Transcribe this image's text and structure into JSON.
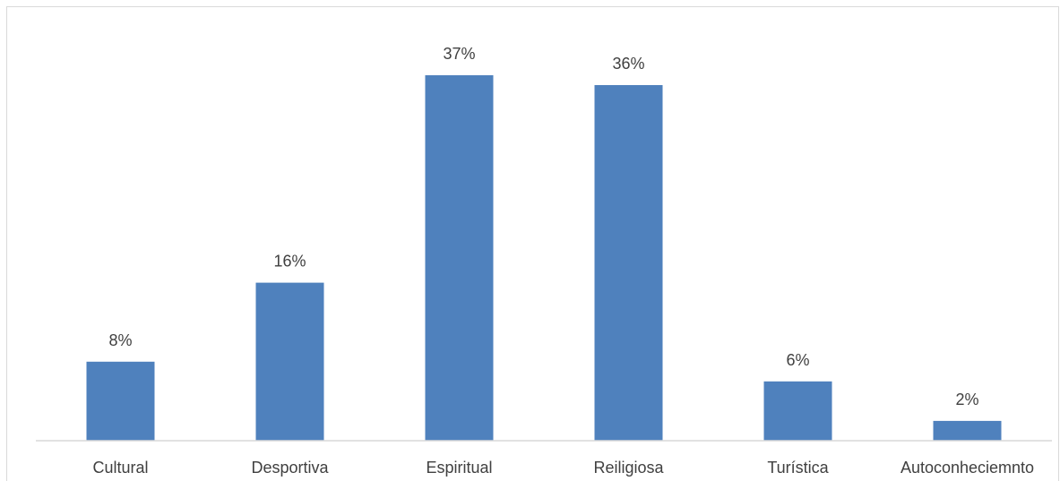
{
  "chart_data": {
    "type": "bar",
    "categories": [
      "Cultural",
      "Desportiva",
      "Espiritual",
      "Reiligiosa",
      "Turística",
      "Autoconheciemnto"
    ],
    "values": [
      8,
      16,
      37,
      36,
      6,
      2
    ],
    "data_labels": [
      "8%",
      "16%",
      "37%",
      "36%",
      "6%",
      "2%"
    ],
    "unit": "%",
    "ylim": [
      0,
      37
    ],
    "grid": false,
    "legend": "none",
    "bar_color": "#4f81bd",
    "axis_color": "#d9d9d9",
    "text_color": "#404040"
  }
}
